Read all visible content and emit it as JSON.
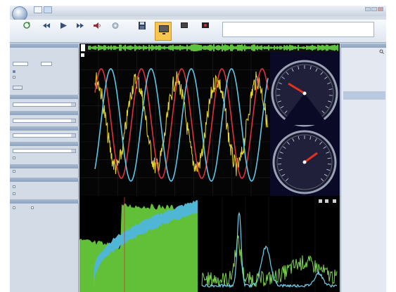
{
  "title_bar": {
    "orb_label": "",
    "title": "",
    "ribbon_tabs": [
      "",
      "",
      "",
      "",
      ""
    ]
  },
  "ribbon": {
    "info_lines": [
      "",
      "",
      ""
    ]
  },
  "left_panel": {
    "checkboxes": [
      "",
      "",
      "",
      "",
      "",
      "",
      "",
      ""
    ]
  },
  "tree": {
    "items": [
      "",
      "",
      "",
      "",
      "",
      "",
      "",
      "",
      "",
      "",
      "",
      "",
      "",
      "",
      "",
      ""
    ]
  },
  "colors": {
    "sine_red": "#e0303c",
    "sine_cyan": "#5ec7e8",
    "noisy_yellow": "#e8d830",
    "fill_green": "#62c038",
    "fill_cyan": "#4fb6d6",
    "gauge_needle": "#e0331e",
    "accent_orange": "#f7c650"
  }
}
